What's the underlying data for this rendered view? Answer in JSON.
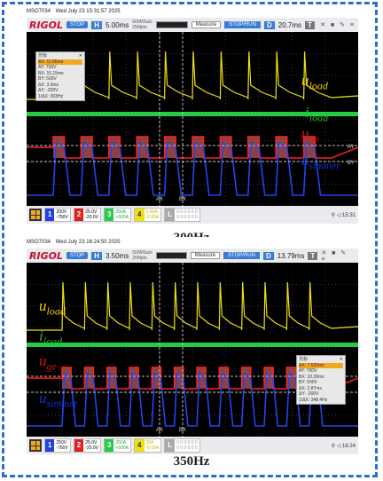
{
  "frame_color": "#2f6fc6",
  "panels": [
    {
      "model": "MSO7034",
      "datetime": "Wed July 23 15:31:57 2025",
      "brand": "RIGOL",
      "run_state": "STOP",
      "h_key": "H",
      "timebase": "5.00ms",
      "sample_rate": "500MSa/s",
      "memory": "25Mpts",
      "measure_label": "Measure",
      "stop_btn": "STOP/RUN",
      "d_key": "D",
      "delay": "20.7ms",
      "t_key": "T",
      "t_icons": "✕ ■ ✎ ≡",
      "channels": [
        {
          "num": "1",
          "color": "#2244dd",
          "scale": "250V",
          "offset": "-750V"
        },
        {
          "num": "2",
          "color": "#e02020",
          "scale": "25.0V",
          "offset": "-20.0V"
        },
        {
          "num": "3",
          "color": "#22cc44",
          "scale": "250A",
          "offset": "+500A"
        },
        {
          "num": "4",
          "color": "#f0e010",
          "scale": "5.00A",
          "offset": "-6.00A"
        },
        {
          "num": "L",
          "color": "#aaaaaa",
          "scale": "0 0 0 0 0 0",
          "offset": "0 0 0 0 0 0"
        }
      ],
      "tray_time": "15:31",
      "cursor_box": {
        "title": "光标",
        "close": "✕",
        "rows": [
          "AX:   11.85ms",
          "AY:   700V",
          "BX:   15.15ms",
          "BY:   500V",
          "ΔX:   3.3ms",
          "ΔY:   -200V",
          "1/ΔX: 303Hz"
        ]
      },
      "markers": {
        "ay": "AY",
        "by": "BY",
        "ax": "AX",
        "bx": "BX"
      },
      "frequency_hz": 303,
      "caption": "300Hz"
    },
    {
      "model": "MSO7034",
      "datetime": "Wed July 23 16:24:50 2025",
      "brand": "RIGOL",
      "run_state": "STOP",
      "h_key": "H",
      "timebase": "3.50ms",
      "sample_rate": "500MSa/s",
      "memory": "25Mpts",
      "measure_label": "Measure",
      "stop_btn": "STOP/RUN",
      "d_key": "D",
      "delay": "13.79ms",
      "t_key": "T",
      "t_icons": "✕ ■ ✎ ≡",
      "channels": [
        {
          "num": "1",
          "color": "#2244dd",
          "scale": "250V",
          "offset": "-750V"
        },
        {
          "num": "2",
          "color": "#e02020",
          "scale": "25.0V",
          "offset": "-20.0V"
        },
        {
          "num": "3",
          "color": "#22cc44",
          "scale": "250A",
          "offset": "+500A"
        },
        {
          "num": "4",
          "color": "#f0e010",
          "scale": "20A",
          "offset": "-6.00A"
        },
        {
          "num": "L",
          "color": "#aaaaaa",
          "scale": "0 0 0 0 0 0",
          "offset": "0 0 0 0 0 0"
        }
      ],
      "tray_time": "16:24",
      "cursor_box": {
        "title": "光标",
        "close": "✕",
        "rows": [
          "AX:   7.525ms",
          "AY:   700V",
          "BX:   10.39ms",
          "BY:   500V",
          "ΔX:   2.87ms",
          "ΔY:   -200V",
          "1/ΔX: 348.4Hz"
        ]
      },
      "markers": {
        "ax": "AX",
        "bx": "BX"
      },
      "frequency_hz": 348.4,
      "caption": "350Hz"
    }
  ],
  "trace_labels": [
    {
      "base": "u",
      "sub": "load",
      "color": "#f0d000"
    },
    {
      "base": "i",
      "sub": "load",
      "color": "#22bb22"
    },
    {
      "base": "u",
      "sub": "ge",
      "color": "#dd1111"
    },
    {
      "base": "u",
      "sub": "simmer",
      "color": "#1133cc"
    }
  ]
}
